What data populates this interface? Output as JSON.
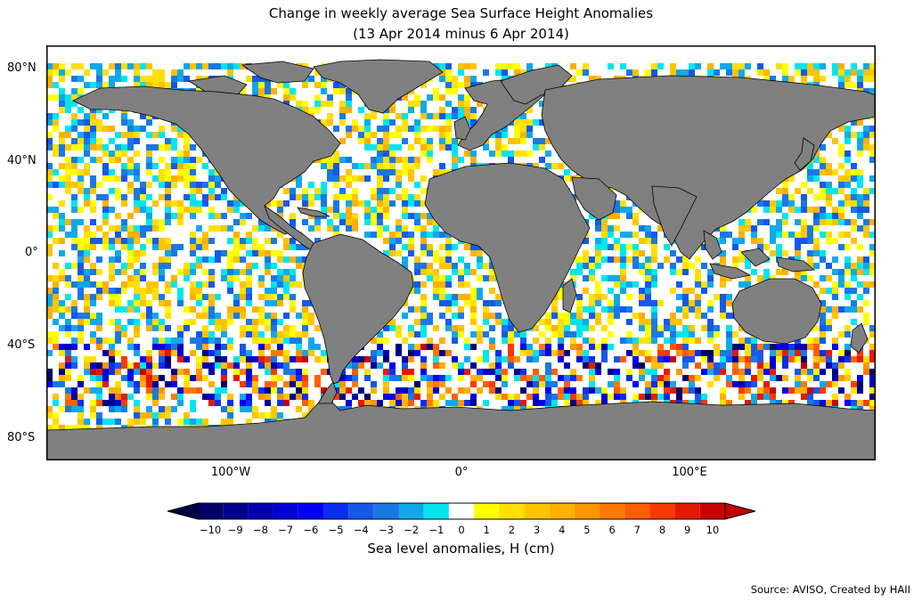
{
  "title_line1": "Change in weekly average Sea Surface Height Anomalies",
  "title_line2": "(13 Apr 2014 minus 6 Apr 2014)",
  "lat_labels": [
    "80°N",
    "40°N",
    "0°",
    "40°S",
    "80°S"
  ],
  "lon_labels": [
    "100°W",
    "0°",
    "100°E"
  ],
  "colorbar": {
    "ticks": [
      "−10",
      "−9",
      "−8",
      "−7",
      "−6",
      "−5",
      "−4",
      "−3",
      "−2",
      "−1",
      "0",
      "1",
      "2",
      "3",
      "4",
      "5",
      "6",
      "7",
      "8",
      "9",
      "10"
    ],
    "colors": [
      "#000066",
      "#00008b",
      "#0000b0",
      "#0000d4",
      "#0000f5",
      "#0a2ef0",
      "#1558ea",
      "#1a78e5",
      "#10a8ea",
      "#00e5ee",
      "#ffffff",
      "#ffff00",
      "#ffe000",
      "#ffc400",
      "#ffb000",
      "#ff9600",
      "#ff7a00",
      "#ff5e00",
      "#f83a00",
      "#e41a00",
      "#c80000"
    ],
    "extend_min_color": "#000044",
    "extend_max_color": "#c00000",
    "label": "Sea level anomalies, H (cm)"
  },
  "land_color": "#808080",
  "source": "Source: AVISO, Created by HAII"
}
